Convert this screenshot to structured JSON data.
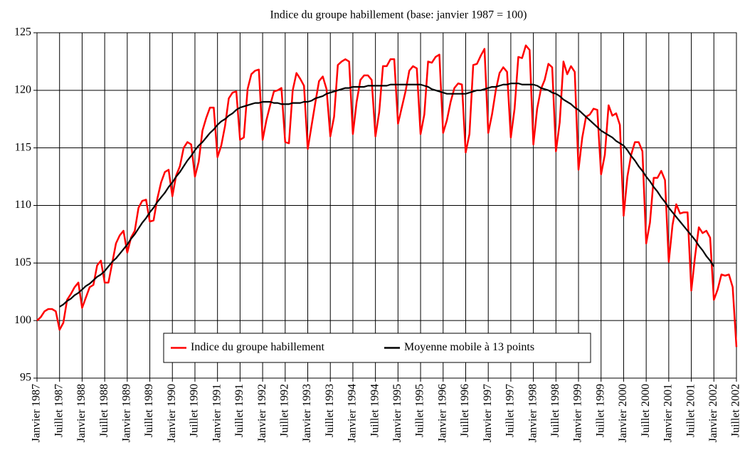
{
  "chart_data": {
    "type": "line",
    "title": "Indice du groupe habillement (base: janvier 1987 = 100)",
    "categories": [
      "Janvier 1987",
      null,
      null,
      null,
      null,
      null,
      "Juillet 1987",
      null,
      null,
      null,
      null,
      null,
      "Janvier 1988",
      null,
      null,
      null,
      null,
      null,
      "Juillet 1988",
      null,
      null,
      null,
      null,
      null,
      "Janvier 1989",
      null,
      null,
      null,
      null,
      null,
      "Juillet 1989",
      null,
      null,
      null,
      null,
      null,
      "Janvier 1990",
      null,
      null,
      null,
      null,
      null,
      "Juillet 1990",
      null,
      null,
      null,
      null,
      null,
      "Janvier 1991",
      null,
      null,
      null,
      null,
      null,
      "Juillet 1991",
      null,
      null,
      null,
      null,
      null,
      "Janvier 1992",
      null,
      null,
      null,
      null,
      null,
      "Juillet 1992",
      null,
      null,
      null,
      null,
      null,
      "Janvier 1993",
      null,
      null,
      null,
      null,
      null,
      "Juillet 1993",
      null,
      null,
      null,
      null,
      null,
      "Janvier 1994",
      null,
      null,
      null,
      null,
      null,
      "Juillet 1994",
      null,
      null,
      null,
      null,
      null,
      "Janvier 1995",
      null,
      null,
      null,
      null,
      null,
      "Juillet 1995",
      null,
      null,
      null,
      null,
      null,
      "Janvier 1996",
      null,
      null,
      null,
      null,
      null,
      "Juillet 1996",
      null,
      null,
      null,
      null,
      null,
      "Janvier 1997",
      null,
      null,
      null,
      null,
      null,
      "Juillet 1997",
      null,
      null,
      null,
      null,
      null,
      "Janvier 1998",
      null,
      null,
      null,
      null,
      null,
      "Juillet 1998",
      null,
      null,
      null,
      null,
      null,
      "Janvier 1999",
      null,
      null,
      null,
      null,
      null,
      "Juillet 1999",
      null,
      null,
      null,
      null,
      null,
      "Janvier 2000",
      null,
      null,
      null,
      null,
      null,
      "Juillet 2000",
      null,
      null,
      null,
      null,
      null,
      "Janvier 2001",
      null,
      null,
      null,
      null,
      null,
      "Juillet 2001",
      null,
      null,
      null,
      null,
      null,
      "Janvier 2002",
      null,
      null,
      null,
      null,
      null,
      "Juillet 2002"
    ],
    "series": [
      {
        "name": "Indice du groupe habillement",
        "color": "#ff0000",
        "values": [
          100.0,
          100.3,
          100.8,
          101.0,
          101.0,
          100.8,
          99.2,
          99.8,
          101.8,
          102.3,
          102.9,
          103.3,
          101.1,
          102.0,
          102.9,
          103.1,
          104.8,
          105.2,
          103.3,
          103.3,
          105.0,
          106.7,
          107.4,
          107.8,
          105.9,
          107.2,
          107.8,
          109.8,
          110.4,
          110.5,
          108.6,
          108.7,
          110.6,
          112.0,
          112.9,
          113.1,
          110.8,
          112.6,
          113.4,
          115.0,
          115.5,
          115.3,
          112.5,
          113.8,
          116.5,
          117.6,
          118.5,
          118.5,
          114.2,
          115.2,
          116.9,
          119.3,
          119.8,
          119.9,
          115.7,
          115.9,
          120.1,
          121.4,
          121.7,
          121.8,
          115.7,
          117.4,
          118.7,
          119.9,
          120.0,
          120.2,
          115.5,
          115.4,
          120.0,
          121.5,
          121.0,
          120.4,
          114.9,
          116.9,
          118.9,
          120.8,
          121.2,
          120.1,
          116.0,
          117.7,
          122.2,
          122.5,
          122.7,
          122.5,
          116.2,
          119.0,
          120.9,
          121.3,
          121.3,
          120.9,
          116.0,
          118.1,
          122.1,
          122.1,
          122.7,
          122.7,
          117.1,
          118.5,
          119.9,
          121.7,
          122.1,
          121.9,
          116.2,
          117.9,
          122.5,
          122.4,
          122.9,
          123.1,
          116.3,
          117.4,
          119.0,
          120.2,
          120.6,
          120.5,
          114.6,
          116.2,
          122.2,
          122.3,
          123.0,
          123.6,
          116.3,
          117.9,
          120.0,
          121.5,
          122.0,
          121.6,
          115.9,
          118.4,
          122.9,
          122.8,
          123.9,
          123.5,
          115.3,
          118.4,
          120.1,
          120.9,
          122.3,
          122.0,
          114.7,
          117.2,
          122.5,
          121.4,
          122.1,
          121.6,
          113.1,
          115.9,
          117.7,
          117.9,
          118.4,
          118.3,
          112.7,
          114.4,
          118.7,
          117.8,
          118.0,
          117.0,
          109.1,
          112.5,
          114.4,
          115.5,
          115.5,
          114.7,
          106.7,
          108.5,
          112.4,
          112.4,
          113.0,
          112.2,
          105.1,
          108.3,
          110.1,
          109.3,
          109.4,
          109.4,
          102.6,
          105.6,
          108.1,
          107.6,
          107.8,
          107.2,
          101.8,
          102.7,
          104.0,
          103.9,
          104.0,
          102.9,
          97.7
        ]
      },
      {
        "name": "Moyenne mobile à 13 points",
        "color": "#000000",
        "values": [
          null,
          null,
          null,
          null,
          null,
          null,
          101.2,
          101.4,
          101.7,
          101.9,
          102.2,
          102.4,
          102.7,
          103.0,
          103.2,
          103.5,
          103.8,
          104.0,
          104.3,
          104.7,
          105.1,
          105.4,
          105.8,
          106.2,
          106.6,
          107.1,
          107.5,
          108.0,
          108.5,
          108.9,
          109.4,
          109.8,
          110.3,
          110.7,
          111.1,
          111.6,
          112.0,
          112.5,
          112.9,
          113.4,
          113.9,
          114.3,
          114.8,
          115.2,
          115.5,
          115.9,
          116.3,
          116.6,
          117.0,
          117.3,
          117.5,
          117.8,
          118.0,
          118.3,
          118.5,
          118.6,
          118.7,
          118.8,
          118.9,
          118.9,
          119.0,
          119.0,
          119.0,
          118.9,
          118.9,
          118.8,
          118.8,
          118.8,
          118.9,
          118.9,
          118.9,
          119.0,
          119.0,
          119.1,
          119.3,
          119.4,
          119.5,
          119.7,
          119.8,
          119.9,
          120.0,
          120.1,
          120.2,
          120.2,
          120.3,
          120.3,
          120.3,
          120.3,
          120.4,
          120.4,
          120.4,
          120.4,
          120.4,
          120.4,
          120.5,
          120.5,
          120.5,
          120.5,
          120.5,
          120.5,
          120.5,
          120.5,
          120.5,
          120.4,
          120.3,
          120.1,
          120.0,
          119.9,
          119.8,
          119.7,
          119.7,
          119.7,
          119.7,
          119.7,
          119.7,
          119.8,
          119.9,
          120.0,
          120.0,
          120.1,
          120.2,
          120.3,
          120.3,
          120.4,
          120.5,
          120.5,
          120.6,
          120.6,
          120.6,
          120.5,
          120.5,
          120.5,
          120.5,
          120.4,
          120.2,
          120.1,
          120.0,
          119.8,
          119.7,
          119.5,
          119.2,
          119.0,
          118.8,
          118.5,
          118.3,
          118.0,
          117.7,
          117.4,
          117.1,
          116.8,
          116.5,
          116.3,
          116.1,
          115.9,
          115.6,
          115.4,
          115.2,
          114.8,
          114.3,
          113.9,
          113.4,
          113.0,
          112.5,
          112.1,
          111.6,
          111.2,
          110.7,
          110.3,
          109.8,
          109.4,
          109.0,
          108.6,
          108.2,
          107.8,
          107.4,
          107.0,
          106.5,
          106.1,
          105.6,
          105.2,
          104.7,
          null,
          null,
          null,
          null,
          null,
          null
        ]
      }
    ],
    "ylim": [
      95,
      125
    ],
    "yticks": [
      95,
      100,
      105,
      110,
      115,
      120,
      125
    ],
    "grid": true,
    "legend": "bottom"
  }
}
